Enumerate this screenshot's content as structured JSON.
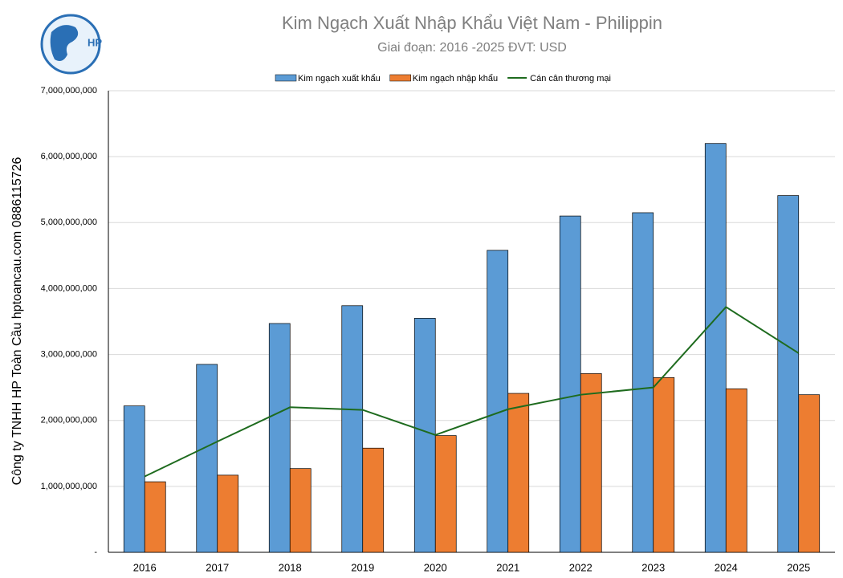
{
  "chart_data": {
    "type": "bar-line",
    "title": "Kim Ngạch Xuất Nhập Khẩu Việt Nam - Philippin",
    "subtitle": "Giai đoạn: 2016 -2025  ĐVT: USD",
    "y_label": "Công ty TNHH HP Toàn Cầu hptoancau.com 0886115726",
    "logo_text": "HP",
    "categories": [
      "2016",
      "2017",
      "2018",
      "2019",
      "2020",
      "2021",
      "2022",
      "2023",
      "2024",
      "2025"
    ],
    "series": [
      {
        "name": "Kim ngạch xuất khẩu",
        "color": "#5b9bd5",
        "kind": "bar",
        "values": [
          2220000000,
          2850000000,
          3470000000,
          3740000000,
          3550000000,
          4580000000,
          5100000000,
          5150000000,
          6200000000,
          5410000000
        ]
      },
      {
        "name": "Kim ngạch nhập khẩu",
        "color": "#ed7d31",
        "kind": "bar",
        "values": [
          1070000000,
          1170000000,
          1270000000,
          1580000000,
          1770000000,
          2410000000,
          2710000000,
          2650000000,
          2480000000,
          2390000000
        ]
      },
      {
        "name": "Cán cân thương mại",
        "color": "#1e6b1e",
        "kind": "line",
        "values": [
          1150000000,
          1680000000,
          2200000000,
          2160000000,
          1780000000,
          2170000000,
          2390000000,
          2500000000,
          3720000000,
          3020000000
        ]
      }
    ],
    "ylim": [
      0,
      7000000000
    ],
    "yticks": [
      {
        "value": 0,
        "label": "-"
      },
      {
        "value": 1000000000,
        "label": "1,000,000,000"
      },
      {
        "value": 2000000000,
        "label": "2,000,000,000"
      },
      {
        "value": 3000000000,
        "label": "3,000,000,000"
      },
      {
        "value": 4000000000,
        "label": "4,000,000,000"
      },
      {
        "value": 5000000000,
        "label": "5,000,000,000"
      },
      {
        "value": 6000000000,
        "label": "6,000,000,000"
      },
      {
        "value": 7000000000,
        "label": "7,000,000,000"
      }
    ]
  }
}
